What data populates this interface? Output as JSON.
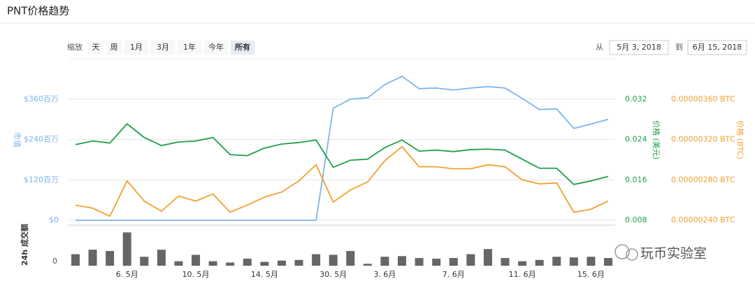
{
  "title": "PNT价格趋势",
  "controls": {
    "zoom_label": "缩放",
    "zoom_buttons": [
      "天",
      "周",
      "1月",
      "3月",
      "1年",
      "今年",
      "所有"
    ],
    "active": "所有",
    "from_label": "从",
    "from": "5月 3, 2018",
    "to_label": "到",
    "to": "6月 15, 2018"
  },
  "watermark": "玩币实验室",
  "chart_data": [
    {
      "type": "line",
      "categories": [
        null,
        null,
        null,
        "6. 5月",
        null,
        null,
        null,
        "10. 5月",
        null,
        null,
        null,
        "14. 5月",
        null,
        null,
        null,
        "30. 5月",
        null,
        null,
        "3. 6月",
        null,
        null,
        null,
        "7. 6月",
        null,
        null,
        null,
        "11. 6月",
        null,
        null,
        null,
        "15. 6月",
        null
      ],
      "series": [
        {
          "name": "市值",
          "color": "#7cb5ec",
          "axis": "y",
          "values": [
            0,
            0,
            0,
            0,
            0,
            0,
            0,
            0,
            0,
            0,
            0,
            0,
            0,
            0,
            0,
            333,
            360,
            364,
            403,
            428,
            391,
            393,
            387,
            393,
            397,
            393,
            362,
            329,
            331,
            273,
            286,
            300
          ]
        },
        {
          "name": "价格 (美元)",
          "color": "#1f9e4a",
          "axis": "y2",
          "values": [
            0.023,
            0.0237,
            0.0233,
            0.0271,
            0.0244,
            0.0228,
            0.0235,
            0.0237,
            0.0244,
            0.021,
            0.0208,
            0.0223,
            0.0231,
            0.0234,
            0.0239,
            0.0185,
            0.0199,
            0.0201,
            0.0224,
            0.0239,
            0.0217,
            0.0219,
            0.0216,
            0.022,
            0.0221,
            0.0219,
            0.0201,
            0.0183,
            0.0183,
            0.0151,
            0.0158,
            0.0167
          ]
        },
        {
          "name": "价格 (BTC)",
          "color": "#f0a030",
          "axis": "y3",
          "values": [
            2.55e-06,
            2.52e-06,
            2.44e-06,
            2.79e-06,
            2.59e-06,
            2.49e-06,
            2.64e-06,
            2.59e-06,
            2.66e-06,
            2.48e-06,
            2.55e-06,
            2.63e-06,
            2.68e-06,
            2.79e-06,
            2.95e-06,
            2.58e-06,
            2.7e-06,
            2.78e-06,
            2.99e-06,
            3.13e-06,
            2.93e-06,
            2.93e-06,
            2.91e-06,
            2.91e-06,
            2.95e-06,
            2.93e-06,
            2.8e-06,
            2.76e-06,
            2.77e-06,
            2.48e-06,
            2.51e-06,
            2.59e-06
          ]
        }
      ],
      "ylim": [
        0,
        480
      ],
      "yticks": [
        {
          "value": 0,
          "label": "$0"
        },
        {
          "value": 120,
          "label": "$120百万"
        },
        {
          "value": 240,
          "label": "$240百万"
        },
        {
          "value": 360,
          "label": "$360百万"
        }
      ],
      "y2lim": [
        0.008,
        0.04
      ],
      "y2ticks": [
        0.008,
        0.016,
        0.024,
        0.032
      ],
      "y3lim": [
        2.4e-06,
        4e-06
      ],
      "y3ticks": [
        {
          "value": 2.4e-06,
          "label": "0.00000240 BTC"
        },
        {
          "value": 2.8e-06,
          "label": "0.00000280 BTC"
        },
        {
          "value": 3.2e-06,
          "label": "0.00000320 BTC"
        },
        {
          "value": 3.6e-06,
          "label": "0.00000360 BTC"
        }
      ],
      "grid": true
    },
    {
      "type": "bar",
      "ylabel": "24h 成交额",
      "color": "#666666",
      "values": [
        18,
        25,
        23,
        52,
        14,
        25,
        7,
        17,
        7,
        5,
        11,
        6,
        8,
        9,
        18,
        17,
        23,
        3,
        14,
        15,
        12,
        11,
        12,
        18,
        26,
        12,
        7,
        9,
        14,
        13,
        14,
        12
      ],
      "ylim": [
        0,
        60
      ],
      "yticks": [
        0
      ]
    }
  ]
}
